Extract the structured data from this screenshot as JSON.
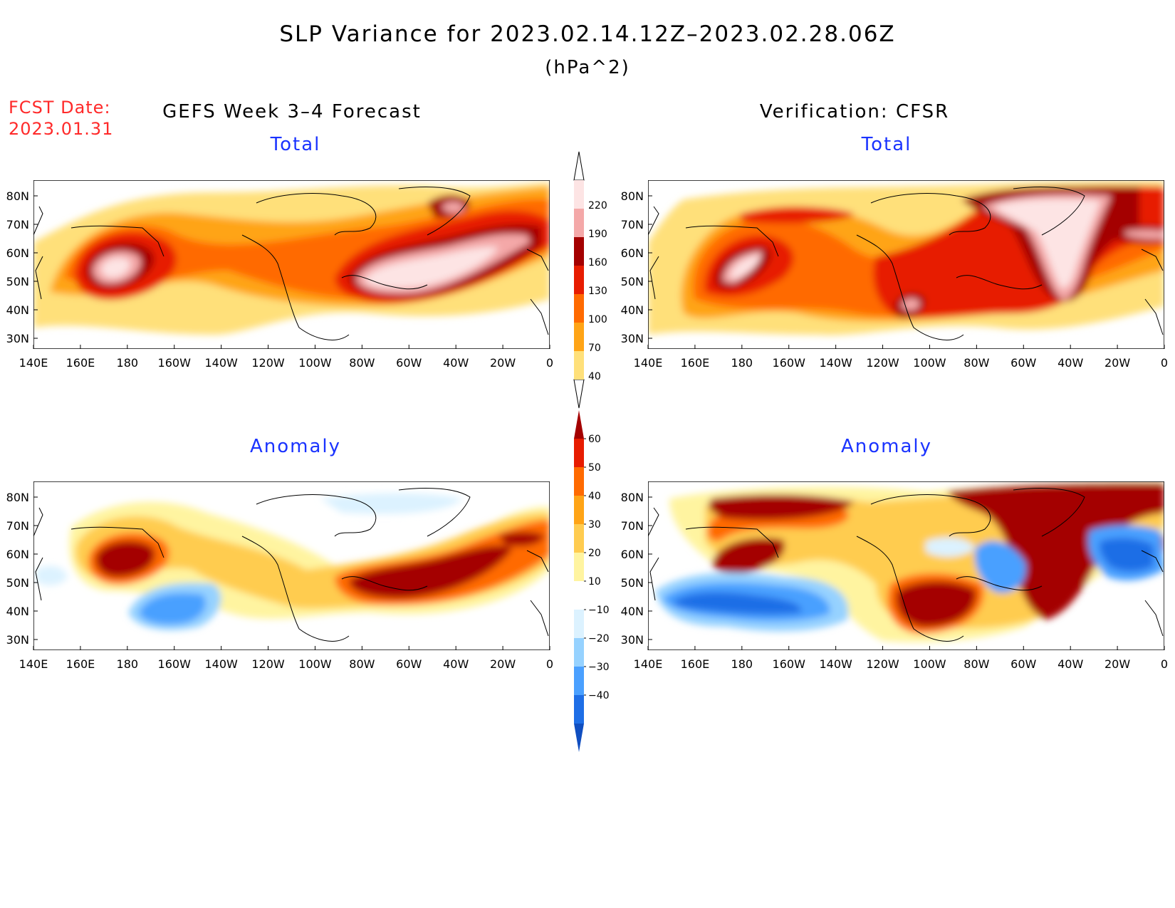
{
  "header": {
    "title": "SLP Variance for 2023.02.14.12Z–2023.02.28.06Z",
    "units": "(hPa^2)",
    "fcst_label": "FCST Date:",
    "fcst_date": "2023.01.31",
    "left_column": "GEFS Week 3–4 Forecast",
    "right_column": "Verification: CFSR"
  },
  "panels": [
    {
      "id": "fc-total",
      "title": "Total"
    },
    {
      "id": "obs-total",
      "title": "Total"
    },
    {
      "id": "fc-anom",
      "title": "Anomaly"
    },
    {
      "id": "obs-anom",
      "title": "Anomaly"
    }
  ],
  "axes": {
    "lon_ticks": [
      "140E",
      "160E",
      "180",
      "160W",
      "140W",
      "120W",
      "100W",
      "80W",
      "60W",
      "40W",
      "20W",
      "0"
    ],
    "lat_ticks": [
      "80N",
      "70N",
      "60N",
      "50N",
      "40N",
      "30N"
    ],
    "lon_range": [
      140,
      360
    ],
    "lat_range": [
      25,
      85
    ]
  },
  "colorbars": {
    "total": {
      "labels": [
        "40",
        "70",
        "100",
        "130",
        "160",
        "190",
        "220"
      ],
      "colors": [
        "#ffe07a",
        "#ffa416",
        "#ff6a00",
        "#e71c00",
        "#a40000",
        "#f4a8a8",
        "#fde4e4"
      ]
    },
    "anomaly": {
      "labels": [
        "60",
        "50",
        "40",
        "30",
        "20",
        "10",
        "−10",
        "−20",
        "−30",
        "−40"
      ],
      "colors": [
        "#a40000",
        "#e71c00",
        "#ff6a00",
        "#ffa416",
        "#ffcc50",
        "#fff4a0",
        "#ffffff",
        "#dcf2ff",
        "#96d2ff",
        "#4aa0ff",
        "#1e6ee6",
        "#104ec0"
      ]
    }
  }
}
